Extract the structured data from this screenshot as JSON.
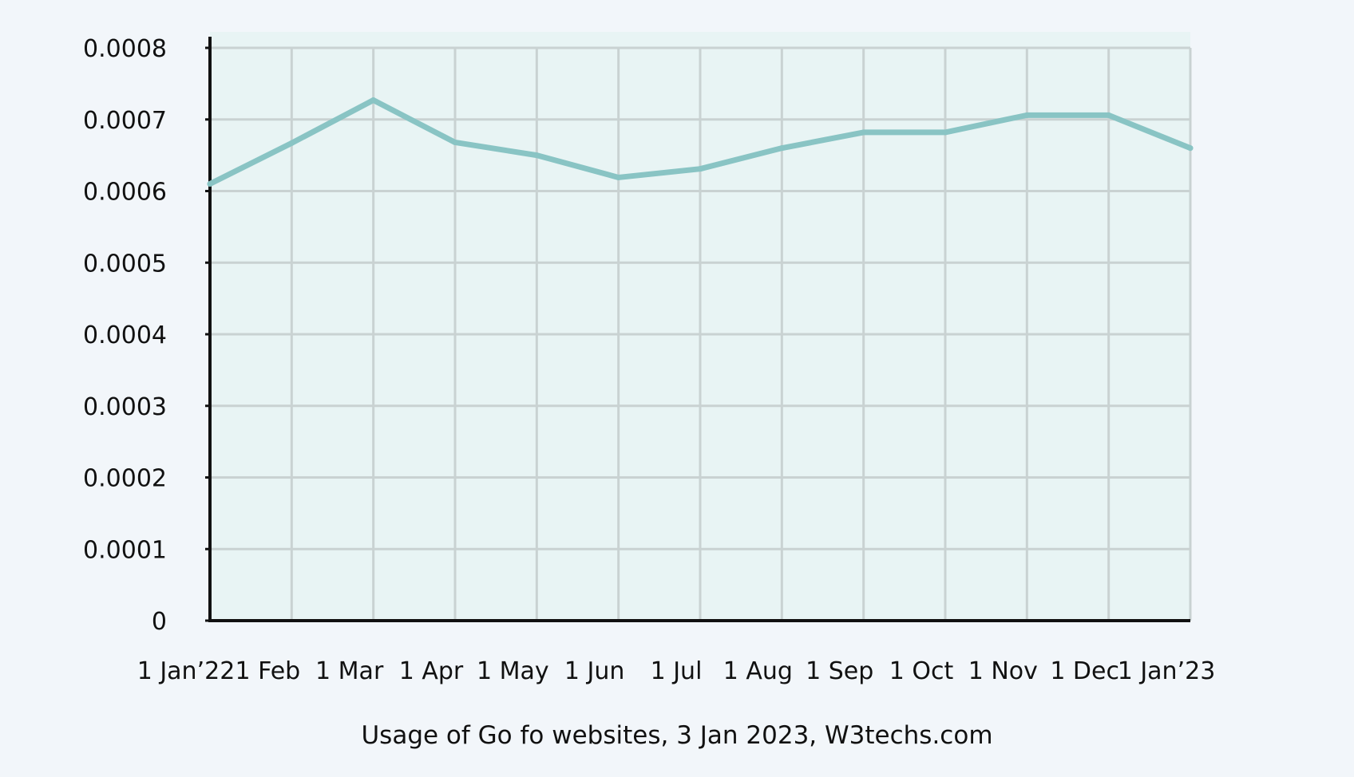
{
  "chart_data": {
    "type": "line",
    "title": "",
    "caption": "Usage of Go fo websites, 3 Jan 2023, W3techs.com",
    "xlabel": "",
    "ylabel": "",
    "categories": [
      "1 Jan’22",
      "1 Feb",
      "1 Mar",
      "1 Apr",
      "1 May",
      "1 Jun",
      "1 Jul",
      "1 Aug",
      "1 Sep",
      "1 Oct",
      "1 Nov",
      "1 Dec",
      "1 Jan’23"
    ],
    "values": [
      0.00061,
      0.000667,
      0.000727,
      0.000668,
      0.00065,
      0.000619,
      0.000631,
      0.00066,
      0.000682,
      0.000682,
      0.000706,
      0.000706,
      0.00066
    ],
    "ylim": [
      0,
      0.0008
    ],
    "yticks": [
      "0",
      "0.0001",
      "0.0002",
      "0.0003",
      "0.0004",
      "0.0005",
      "0.0006",
      "0.0007",
      "0.0008"
    ],
    "grid": true,
    "legend": "none",
    "colors": {
      "line": "#89c4c4",
      "plot_background": "#e8f4f4",
      "page_background": "#f2f6fa",
      "grid": "#c9d2d2",
      "axis": "#111111"
    }
  }
}
